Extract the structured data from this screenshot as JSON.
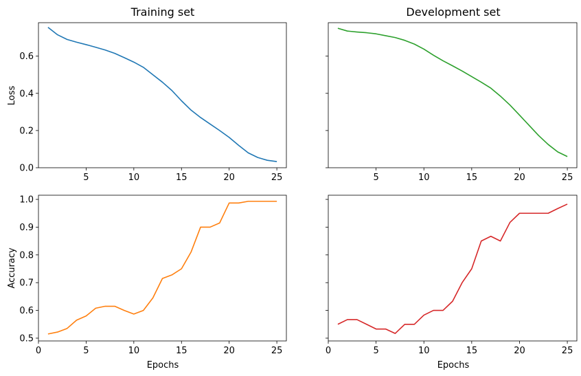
{
  "chart_data": [
    {
      "type": "line",
      "title": "Training set",
      "xlabel": "",
      "ylabel": "Loss",
      "xlim": [
        0,
        26
      ],
      "ylim": [
        0,
        0.78
      ],
      "xticks": [
        5,
        10,
        15,
        20,
        25
      ],
      "yticks": [
        0.0,
        0.2,
        0.4,
        0.6
      ],
      "ytick_labels": [
        "0.0",
        "0.2",
        "0.4",
        "0.6"
      ],
      "grid": false,
      "series": [
        {
          "color": "#1f77b4",
          "x": [
            1,
            2,
            3,
            4,
            5,
            6,
            7,
            8,
            9,
            10,
            11,
            12,
            13,
            14,
            15,
            16,
            17,
            18,
            19,
            20,
            21,
            22,
            23,
            24,
            25
          ],
          "values": [
            0.755,
            0.715,
            0.69,
            0.675,
            0.662,
            0.648,
            0.633,
            0.615,
            0.592,
            0.568,
            0.54,
            0.5,
            0.46,
            0.415,
            0.36,
            0.31,
            0.27,
            0.235,
            0.2,
            0.163,
            0.12,
            0.08,
            0.055,
            0.04,
            0.033
          ]
        }
      ]
    },
    {
      "type": "line",
      "title": "Development set",
      "xlabel": "",
      "ylabel": "",
      "xlim": [
        0,
        26
      ],
      "ylim": [
        0,
        0.78
      ],
      "xticks": [
        5,
        10,
        15,
        20,
        25
      ],
      "yticks": [
        0.0,
        0.2,
        0.4,
        0.6
      ],
      "ytick_labels": [],
      "grid": false,
      "series": [
        {
          "color": "#2ca02c",
          "x": [
            1,
            2,
            3,
            4,
            5,
            6,
            7,
            8,
            9,
            10,
            11,
            12,
            13,
            14,
            15,
            16,
            17,
            18,
            19,
            20,
            21,
            22,
            23,
            24,
            25
          ],
          "values": [
            0.75,
            0.735,
            0.73,
            0.726,
            0.72,
            0.71,
            0.7,
            0.685,
            0.665,
            0.638,
            0.605,
            0.575,
            0.548,
            0.52,
            0.49,
            0.46,
            0.428,
            0.385,
            0.337,
            0.283,
            0.228,
            0.173,
            0.125,
            0.085,
            0.06
          ]
        }
      ]
    },
    {
      "type": "line",
      "title": "",
      "xlabel": "Epochs",
      "ylabel": "Accuracy",
      "xlim": [
        0,
        26
      ],
      "ylim": [
        0.49,
        1.015
      ],
      "xticks": [
        0,
        5,
        10,
        15,
        20,
        25
      ],
      "yticks": [
        0.5,
        0.6,
        0.7,
        0.8,
        0.9,
        1.0
      ],
      "ytick_labels": [
        "0.5",
        "0.6",
        "0.7",
        "0.8",
        "0.9",
        "1.0"
      ],
      "grid": false,
      "series": [
        {
          "color": "#ff7f0e",
          "x": [
            1,
            2,
            3,
            4,
            5,
            6,
            7,
            8,
            9,
            10,
            11,
            12,
            13,
            14,
            15,
            16,
            17,
            18,
            19,
            20,
            21,
            22,
            23,
            24,
            25
          ],
          "values": [
            0.515,
            0.522,
            0.535,
            0.565,
            0.58,
            0.608,
            0.615,
            0.615,
            0.6,
            0.587,
            0.6,
            0.645,
            0.715,
            0.728,
            0.75,
            0.81,
            0.9,
            0.9,
            0.915,
            0.987,
            0.987,
            0.993,
            0.993,
            0.993,
            0.993
          ]
        }
      ]
    },
    {
      "type": "line",
      "title": "",
      "xlabel": "Epochs",
      "ylabel": "",
      "xlim": [
        0,
        26
      ],
      "ylim": [
        0.49,
        1.015
      ],
      "xticks": [
        0,
        5,
        10,
        15,
        20,
        25
      ],
      "yticks": [
        0.5,
        0.6,
        0.7,
        0.8,
        0.9,
        1.0
      ],
      "ytick_labels": [],
      "grid": false,
      "series": [
        {
          "color": "#d62728",
          "x": [
            1,
            2,
            3,
            4,
            5,
            6,
            7,
            8,
            9,
            10,
            11,
            12,
            13,
            14,
            15,
            16,
            17,
            18,
            19,
            20,
            21,
            22,
            23,
            24,
            25
          ],
          "values": [
            0.55,
            0.567,
            0.567,
            0.55,
            0.533,
            0.533,
            0.517,
            0.55,
            0.55,
            0.583,
            0.6,
            0.6,
            0.633,
            0.7,
            0.75,
            0.85,
            0.867,
            0.85,
            0.917,
            0.95,
            0.95,
            0.95,
            0.95,
            0.967,
            0.983
          ]
        }
      ]
    }
  ]
}
